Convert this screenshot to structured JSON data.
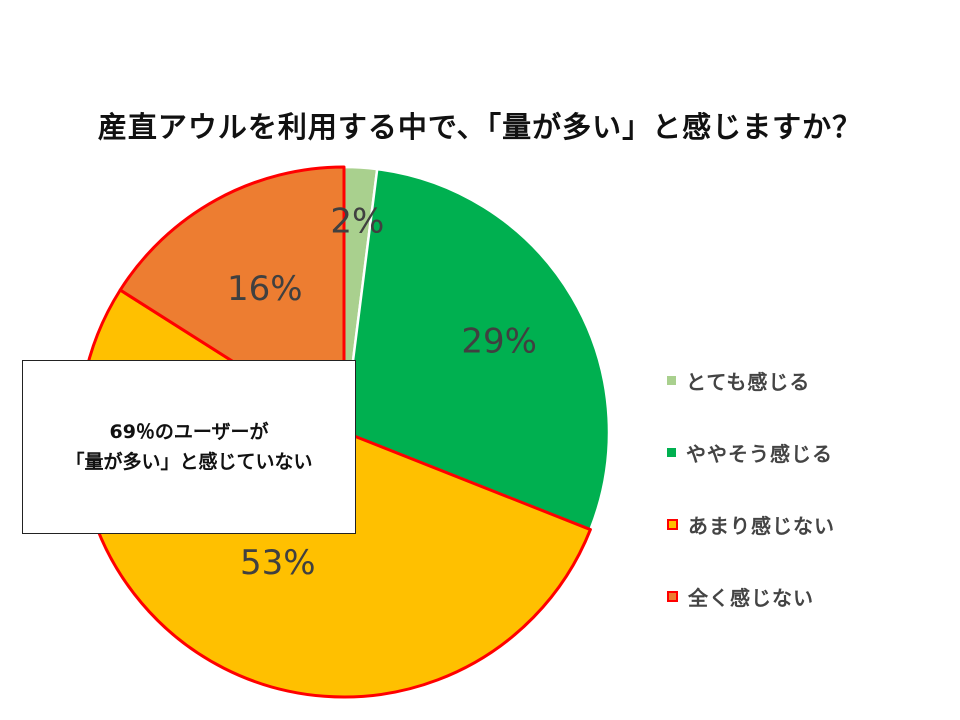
{
  "chart_data": {
    "type": "pie",
    "title": "産直アウルを利用する中で、「量が多い」と感じますか？",
    "slices": [
      {
        "label": "とても感じる",
        "value": 2,
        "data_label": "2%",
        "color": "#a9d08e",
        "edge": "#ffffff"
      },
      {
        "label": "ややそう感じる",
        "value": 29,
        "data_label": "29%",
        "color": "#00b050",
        "edge": "#ffffff"
      },
      {
        "label": "あまり感じない",
        "value": 53,
        "data_label": "53%",
        "color": "#ffc000",
        "edge": "#ff0000"
      },
      {
        "label": "全く感じない",
        "value": 16,
        "data_label": "16%",
        "color": "#ed7d31",
        "edge": "#ff0000"
      }
    ],
    "legend_position": "right"
  },
  "callout": {
    "line1": "69％のユーザーが",
    "line2": "「量が多い」と感じていない"
  }
}
